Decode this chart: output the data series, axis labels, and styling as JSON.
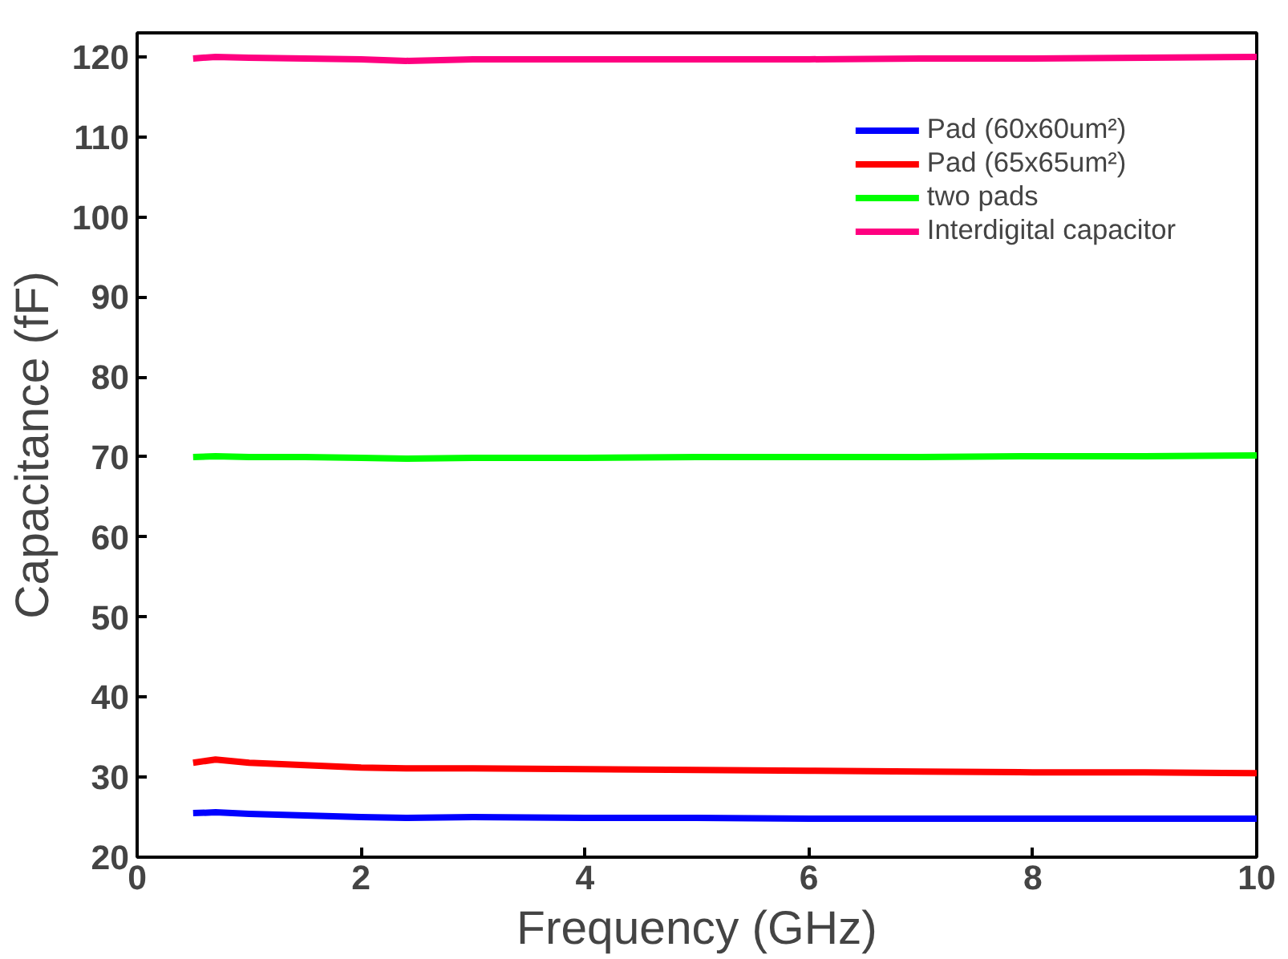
{
  "chart_data": {
    "type": "line",
    "xlabel": "Frequency (GHz)",
    "ylabel": "Capacitance (fF)",
    "x": [
      0.5,
      0.7,
      1,
      1.5,
      2,
      2.4,
      3,
      4,
      5,
      6,
      7,
      8,
      9,
      10
    ],
    "series": [
      {
        "name": "Pad (60x60um²)",
        "color": "#0000ff",
        "values": [
          25.5,
          25.6,
          25.4,
          25.2,
          25.0,
          24.9,
          25.0,
          24.9,
          24.9,
          24.8,
          24.8,
          24.8,
          24.8,
          24.8
        ]
      },
      {
        "name": "Pad (65x65um²)",
        "color": "#ff0000",
        "values": [
          31.8,
          32.2,
          31.8,
          31.5,
          31.2,
          31.1,
          31.1,
          31.0,
          30.9,
          30.8,
          30.7,
          30.6,
          30.6,
          30.5
        ]
      },
      {
        "name": "two pads",
        "color": "#00ff00",
        "values": [
          70.0,
          70.1,
          70.0,
          70.0,
          69.9,
          69.8,
          69.9,
          69.9,
          70.0,
          70.0,
          70.0,
          70.1,
          70.1,
          70.2
        ]
      },
      {
        "name": "Interdigital capacitor",
        "color": "#ff0080",
        "values": [
          119.8,
          120.0,
          119.9,
          119.8,
          119.7,
          119.5,
          119.7,
          119.7,
          119.7,
          119.7,
          119.8,
          119.8,
          119.9,
          120.0
        ]
      }
    ],
    "xlim": [
      0,
      10
    ],
    "ylim": [
      20,
      123
    ],
    "xticks": [
      0,
      2,
      4,
      6,
      8,
      10
    ],
    "yticks": [
      20,
      30,
      40,
      50,
      60,
      70,
      80,
      90,
      100,
      110,
      120
    ],
    "legend": "top right",
    "grid": false
  }
}
